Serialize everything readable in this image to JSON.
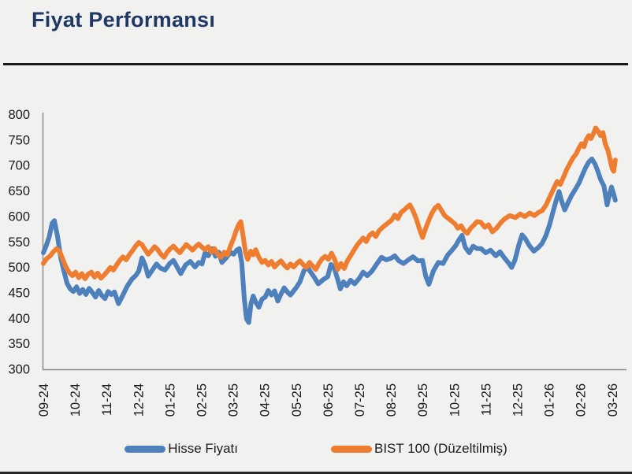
{
  "page": {
    "title": "Fiyat Performansı",
    "title_color": "#1f3864",
    "background": "#f1f1f0"
  },
  "legend": {
    "items": [
      {
        "label": "Hisse Fiyatı",
        "color": "#4e80bc"
      },
      {
        "label": "BIST 100 (Düzeltilmiş)",
        "color": "#ee7d30"
      }
    ]
  },
  "chart_data": {
    "type": "line",
    "title": "Fiyat Performansı",
    "xlabel": "",
    "ylabel": "",
    "ylim": [
      300,
      800
    ],
    "y_ticks": [
      300,
      350,
      400,
      450,
      500,
      550,
      600,
      650,
      700,
      750,
      800
    ],
    "x_tick_labels": [
      "09-24",
      "10-24",
      "11-24",
      "12-24",
      "01-25",
      "02-25",
      "03-25",
      "04-25",
      "05-25",
      "06-25",
      "07-25",
      "08-25",
      "09-25",
      "10-25",
      "11-25",
      "12-25",
      "01-26",
      "02-26",
      "03-26"
    ],
    "x_unit_note": "x in month-index units, 0 = 09-24, 18 = 03-26",
    "grid": false,
    "legend_position": "bottom",
    "axis_color": "#8c8c8c",
    "tick_label_color": "#1a1a1a",
    "series": [
      {
        "name": "Hisse Fiyatı",
        "color": "#4e80bc",
        "x": [
          0,
          0.08,
          0.18,
          0.28,
          0.35,
          0.45,
          0.55,
          0.65,
          0.75,
          0.85,
          0.95,
          1.05,
          1.15,
          1.25,
          1.35,
          1.45,
          1.55,
          1.65,
          1.75,
          1.85,
          1.95,
          2.05,
          2.15,
          2.25,
          2.38,
          2.5,
          2.65,
          2.8,
          2.92,
          3.02,
          3.12,
          3.22,
          3.32,
          3.45,
          3.58,
          3.7,
          3.85,
          4,
          4.12,
          4.25,
          4.35,
          4.5,
          4.65,
          4.8,
          4.92,
          5.02,
          5.12,
          5.22,
          5.35,
          5.45,
          5.55,
          5.65,
          5.8,
          5.92,
          6.02,
          6.12,
          6.2,
          6.28,
          6.36,
          6.43,
          6.5,
          6.57,
          6.64,
          6.72,
          6.82,
          6.92,
          7.02,
          7.12,
          7.22,
          7.32,
          7.42,
          7.52,
          7.62,
          7.72,
          7.82,
          7.92,
          8.02,
          8.12,
          8.25,
          8.35,
          8.45,
          8.58,
          8.7,
          8.85,
          9,
          9.1,
          9.2,
          9.3,
          9.4,
          9.5,
          9.6,
          9.72,
          9.85,
          10,
          10.12,
          10.25,
          10.4,
          10.55,
          10.7,
          10.85,
          11,
          11.12,
          11.25,
          11.4,
          11.55,
          11.7,
          11.85,
          12,
          12.1,
          12.2,
          12.35,
          12.5,
          12.65,
          12.8,
          12.92,
          13.05,
          13.15,
          13.25,
          13.35,
          13.48,
          13.6,
          13.72,
          13.85,
          14,
          14.15,
          14.32,
          14.45,
          14.6,
          14.72,
          14.82,
          14.92,
          15.05,
          15.15,
          15.25,
          15.38,
          15.52,
          15.66,
          15.78,
          15.9,
          16.02,
          16.14,
          16.25,
          16.32,
          16.4,
          16.5,
          16.6,
          16.72,
          16.84,
          16.96,
          17.06,
          17.16,
          17.26,
          17.36,
          17.46,
          17.54,
          17.64,
          17.74,
          17.84,
          17.91,
          17.98,
          18.04,
          18.1
        ],
        "values": [
          528,
          540,
          558,
          586,
          591,
          560,
          518,
          492,
          468,
          457,
          452,
          461,
          448,
          456,
          446,
          458,
          450,
          441,
          454,
          444,
          438,
          452,
          446,
          451,
          428,
          443,
          462,
          476,
          483,
          492,
          518,
          504,
          482,
          494,
          506,
          498,
          494,
          507,
          513,
          498,
          487,
          504,
          511,
          500,
          509,
          506,
          528,
          522,
          536,
          521,
          529,
          509,
          519,
          529,
          525,
          533,
          536,
          508,
          438,
          398,
          391,
          428,
          443,
          431,
          421,
          437,
          441,
          454,
          445,
          453,
          433,
          447,
          459,
          451,
          445,
          453,
          461,
          471,
          493,
          500,
          491,
          479,
          467,
          475,
          481,
          505,
          499,
          479,
          457,
          471,
          463,
          474,
          467,
          478,
          490,
          483,
          492,
          506,
          519,
          514,
          517,
          522,
          512,
          507,
          514,
          520,
          512,
          513,
          482,
          466,
          493,
          509,
          507,
          524,
          532,
          542,
          553,
          562,
          539,
          528,
          541,
          536,
          536,
          528,
          533,
          522,
          530,
          517,
          508,
          499,
          513,
          544,
          563,
          556,
          542,
          531,
          538,
          546,
          561,
          583,
          611,
          635,
          648,
          630,
          612,
          626,
          641,
          653,
          666,
          681,
          695,
          706,
          712,
          702,
          689,
          671,
          659,
          622,
          641,
          657,
          645,
          631
        ]
      },
      {
        "name": "BIST 100 (Düzeltilmiş)",
        "color": "#ee7d30",
        "x": [
          0,
          0.1,
          0.22,
          0.32,
          0.42,
          0.52,
          0.62,
          0.72,
          0.82,
          0.92,
          1.02,
          1.12,
          1.22,
          1.32,
          1.42,
          1.52,
          1.62,
          1.72,
          1.82,
          1.92,
          2.02,
          2.12,
          2.22,
          2.32,
          2.42,
          2.52,
          2.62,
          2.72,
          2.82,
          2.92,
          3.02,
          3.12,
          3.22,
          3.32,
          3.42,
          3.52,
          3.62,
          3.72,
          3.82,
          3.92,
          4.02,
          4.12,
          4.22,
          4.32,
          4.42,
          4.52,
          4.62,
          4.72,
          4.82,
          4.92,
          5.02,
          5.12,
          5.22,
          5.32,
          5.42,
          5.52,
          5.62,
          5.72,
          5.82,
          5.92,
          6.02,
          6.1,
          6.18,
          6.25,
          6.32,
          6.4,
          6.47,
          6.56,
          6.64,
          6.72,
          6.82,
          6.92,
          7.02,
          7.12,
          7.22,
          7.32,
          7.42,
          7.52,
          7.62,
          7.72,
          7.82,
          7.92,
          8.02,
          8.12,
          8.22,
          8.32,
          8.42,
          8.52,
          8.62,
          8.72,
          8.82,
          8.92,
          9.02,
          9.12,
          9.22,
          9.32,
          9.42,
          9.52,
          9.62,
          9.72,
          9.82,
          9.92,
          10.02,
          10.12,
          10.22,
          10.32,
          10.42,
          10.52,
          10.62,
          10.72,
          10.82,
          10.92,
          11.02,
          11.12,
          11.22,
          11.32,
          11.42,
          11.52,
          11.6,
          11.7,
          11.8,
          11.9,
          12,
          12.1,
          12.2,
          12.3,
          12.4,
          12.5,
          12.6,
          12.7,
          12.8,
          12.9,
          13.02,
          13.12,
          13.22,
          13.32,
          13.42,
          13.52,
          13.62,
          13.72,
          13.84,
          13.97,
          14.09,
          14.21,
          14.34,
          14.49,
          14.61,
          14.76,
          14.94,
          15.09,
          15.24,
          15.39,
          15.54,
          15.66,
          15.79,
          15.91,
          16.03,
          16.16,
          16.26,
          16.36,
          16.46,
          16.56,
          16.66,
          16.76,
          16.86,
          16.96,
          17.03,
          17.11,
          17.18,
          17.26,
          17.33,
          17.41,
          17.48,
          17.56,
          17.63,
          17.71,
          17.78,
          17.86,
          17.93,
          18,
          18.05,
          18.1
        ],
        "values": [
          507,
          516,
          522,
          530,
          536,
          530,
          514,
          499,
          489,
          483,
          490,
          479,
          487,
          477,
          486,
          490,
          480,
          488,
          478,
          484,
          491,
          499,
          494,
          504,
          513,
          520,
          514,
          524,
          532,
          541,
          548,
          544,
          534,
          525,
          532,
          540,
          534,
          525,
          519,
          529,
          536,
          541,
          534,
          528,
          536,
          544,
          539,
          533,
          540,
          545,
          539,
          534,
          540,
          529,
          536,
          525,
          519,
          529,
          524,
          541,
          556,
          571,
          583,
          589,
          562,
          528,
          515,
          531,
          524,
          534,
          519,
          509,
          513,
          504,
          511,
          500,
          507,
          512,
          504,
          498,
          506,
          500,
          507,
          512,
          505,
          499,
          509,
          502,
          495,
          507,
          516,
          521,
          515,
          527,
          515,
          495,
          507,
          497,
          512,
          522,
          532,
          542,
          550,
          557,
          550,
          562,
          567,
          560,
          571,
          577,
          582,
          587,
          592,
          602,
          595,
          607,
          612,
          618,
          622,
          610,
          595,
          575,
          558,
          576,
          592,
          606,
          616,
          621,
          611,
          601,
          596,
          591,
          585,
          576,
          581,
          571,
          566,
          576,
          582,
          589,
          588,
          578,
          583,
          569,
          576,
          588,
          595,
          601,
          597,
          604,
          599,
          606,
          601,
          607,
          611,
          622,
          638,
          655,
          668,
          662,
          676,
          691,
          703,
          714,
          722,
          735,
          742,
          736,
          750,
          758,
          752,
          762,
          773,
          766,
          758,
          764,
          742,
          730,
          712,
          693,
          688,
          710
        ]
      }
    ]
  }
}
